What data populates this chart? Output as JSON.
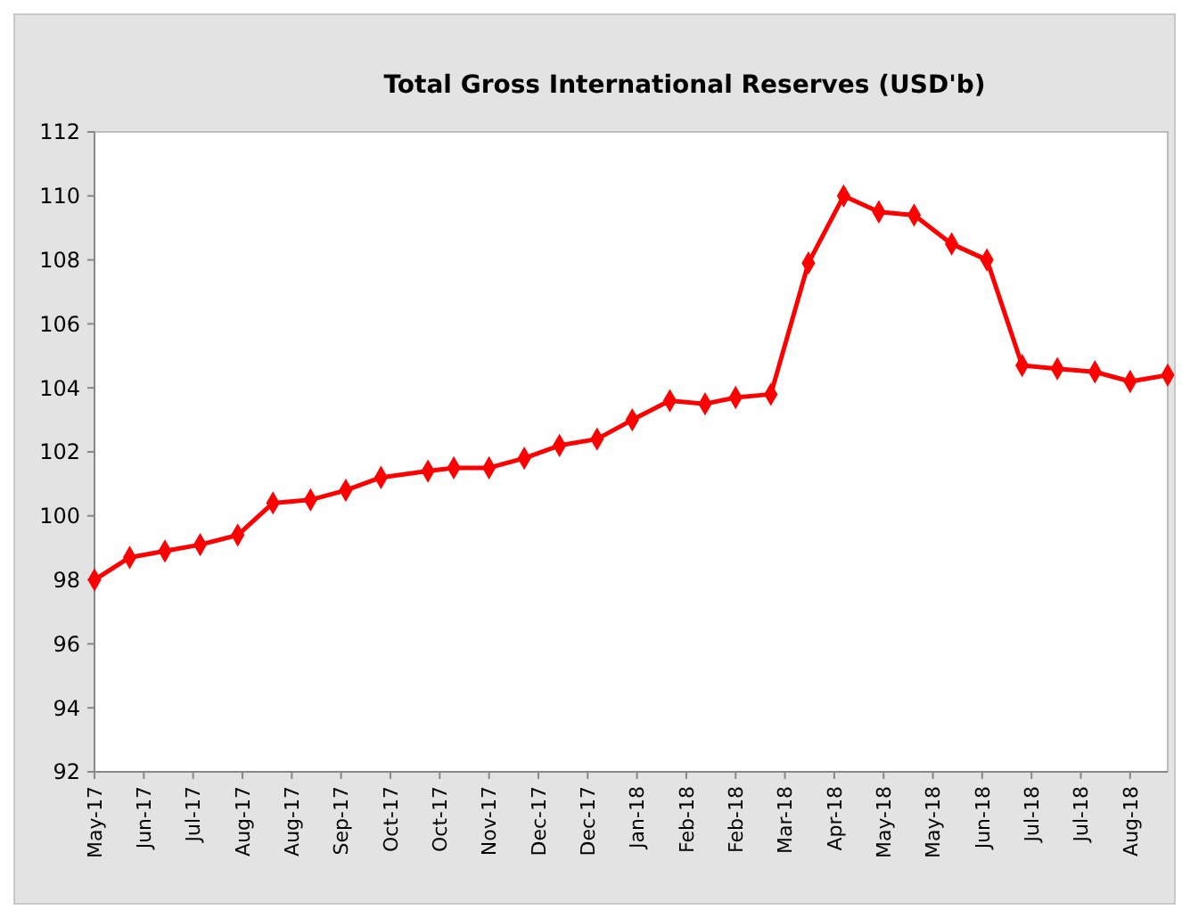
{
  "chart_data": {
    "type": "line",
    "title": "Total Gross International Reserves (USD'b)",
    "x": [
      "2017-05-31",
      "2017-06-15",
      "2017-06-30",
      "2017-07-15",
      "2017-07-31",
      "2017-08-15",
      "2017-08-31",
      "2017-09-15",
      "2017-09-30",
      "2017-10-20",
      "2017-10-31",
      "2017-11-15",
      "2017-11-30",
      "2017-12-15",
      "2017-12-31",
      "2018-01-15",
      "2018-01-31",
      "2018-02-15",
      "2018-02-28",
      "2018-03-15",
      "2018-03-31",
      "2018-04-15",
      "2018-04-30",
      "2018-05-15",
      "2018-05-31",
      "2018-06-15",
      "2018-06-30",
      "2018-07-15",
      "2018-07-31",
      "2018-08-15",
      "2018-08-31"
    ],
    "series": [
      {
        "color": "#ff0000",
        "values": [
          98.0,
          98.7,
          98.9,
          99.1,
          99.4,
          100.4,
          100.5,
          100.8,
          101.2,
          101.4,
          101.5,
          101.5,
          101.8,
          102.2,
          102.4,
          103.0,
          103.6,
          103.5,
          103.7,
          103.8,
          107.9,
          110.0,
          109.5,
          109.4,
          108.5,
          108.0,
          104.7,
          104.6,
          104.5,
          104.2,
          104.4
        ]
      }
    ],
    "xlim": [
      "2017-05-31",
      "2018-08-31"
    ],
    "xticks": [
      {
        "value": "2017-05-31",
        "label": "May-17"
      },
      {
        "value": "2017-06-21",
        "label": "Jun-17"
      },
      {
        "value": "2017-07-12",
        "label": "Jul-17"
      },
      {
        "value": "2017-08-02",
        "label": "Aug-17"
      },
      {
        "value": "2017-08-23",
        "label": "Aug-17"
      },
      {
        "value": "2017-09-13",
        "label": "Sep-17"
      },
      {
        "value": "2017-10-04",
        "label": "Oct-17"
      },
      {
        "value": "2017-10-25",
        "label": "Oct-17"
      },
      {
        "value": "2017-11-15",
        "label": "Nov-17"
      },
      {
        "value": "2017-12-06",
        "label": "Dec-17"
      },
      {
        "value": "2017-12-27",
        "label": "Dec-17"
      },
      {
        "value": "2018-01-17",
        "label": "Jan-18"
      },
      {
        "value": "2018-02-07",
        "label": "Feb-18"
      },
      {
        "value": "2018-02-28",
        "label": "Feb-18"
      },
      {
        "value": "2018-03-21",
        "label": "Mar-18"
      },
      {
        "value": "2018-04-11",
        "label": "Apr-18"
      },
      {
        "value": "2018-05-02",
        "label": "May-18"
      },
      {
        "value": "2018-05-23",
        "label": "May-18"
      },
      {
        "value": "2018-06-13",
        "label": "Jun-18"
      },
      {
        "value": "2018-07-04",
        "label": "Jul-18"
      },
      {
        "value": "2018-07-25",
        "label": "Jul-18"
      },
      {
        "value": "2018-08-15",
        "label": "Aug-18"
      }
    ],
    "ylim": [
      92,
      112
    ],
    "yticks": [
      92,
      94,
      96,
      98,
      100,
      102,
      104,
      106,
      108,
      110,
      112
    ],
    "marker": "diamond",
    "line_style": "solid"
  }
}
